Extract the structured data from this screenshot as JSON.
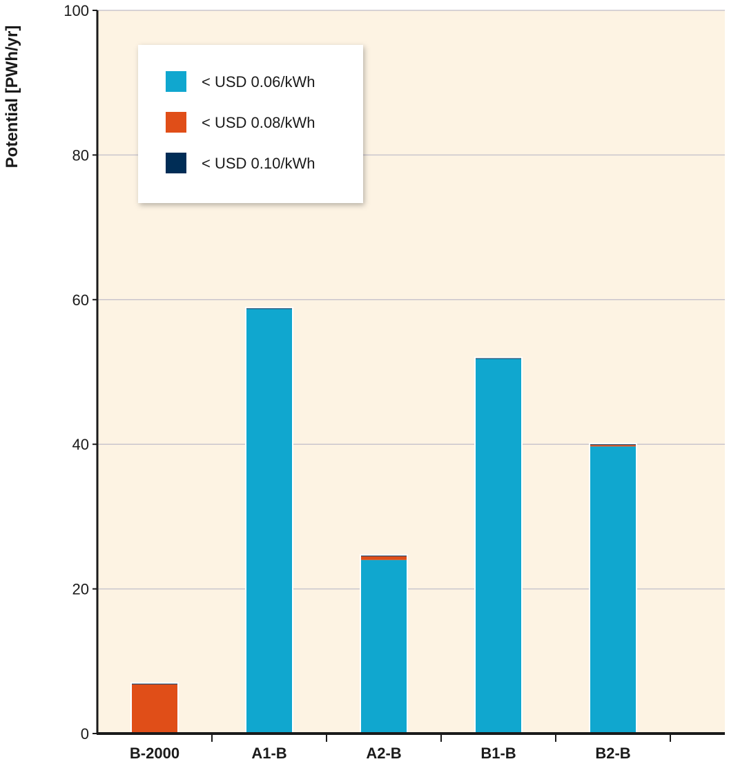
{
  "chart_data": {
    "type": "bar",
    "stacked": true,
    "ylabel": "Potential [PWh/yr]",
    "xlabel": "",
    "ylim": [
      0,
      100
    ],
    "yticks": [
      0,
      20,
      40,
      60,
      80,
      100
    ],
    "grid": true,
    "legend_position": "top-left",
    "categories": [
      "B-2000",
      "A1-B",
      "A2-B",
      "B1-B",
      "B2-B"
    ],
    "series": [
      {
        "name": "< USD 0.06/kWh",
        "color": "#10a7cf",
        "values": [
          0,
          58.7,
          24.0,
          51.8,
          39.7
        ]
      },
      {
        "name": "< USD 0.08/kWh",
        "color": "#e04e18",
        "values": [
          6.8,
          0,
          0.5,
          0,
          0.2
        ]
      },
      {
        "name": "< USD 0.10/kWh",
        "color": "#002d56",
        "values": [
          0.1,
          0.1,
          0.1,
          0.1,
          0.1
        ]
      }
    ],
    "colors": {
      "plot_background": "#fdf3e3",
      "gridline": "#c9c5cd",
      "axis": "#1a1a1a"
    }
  }
}
